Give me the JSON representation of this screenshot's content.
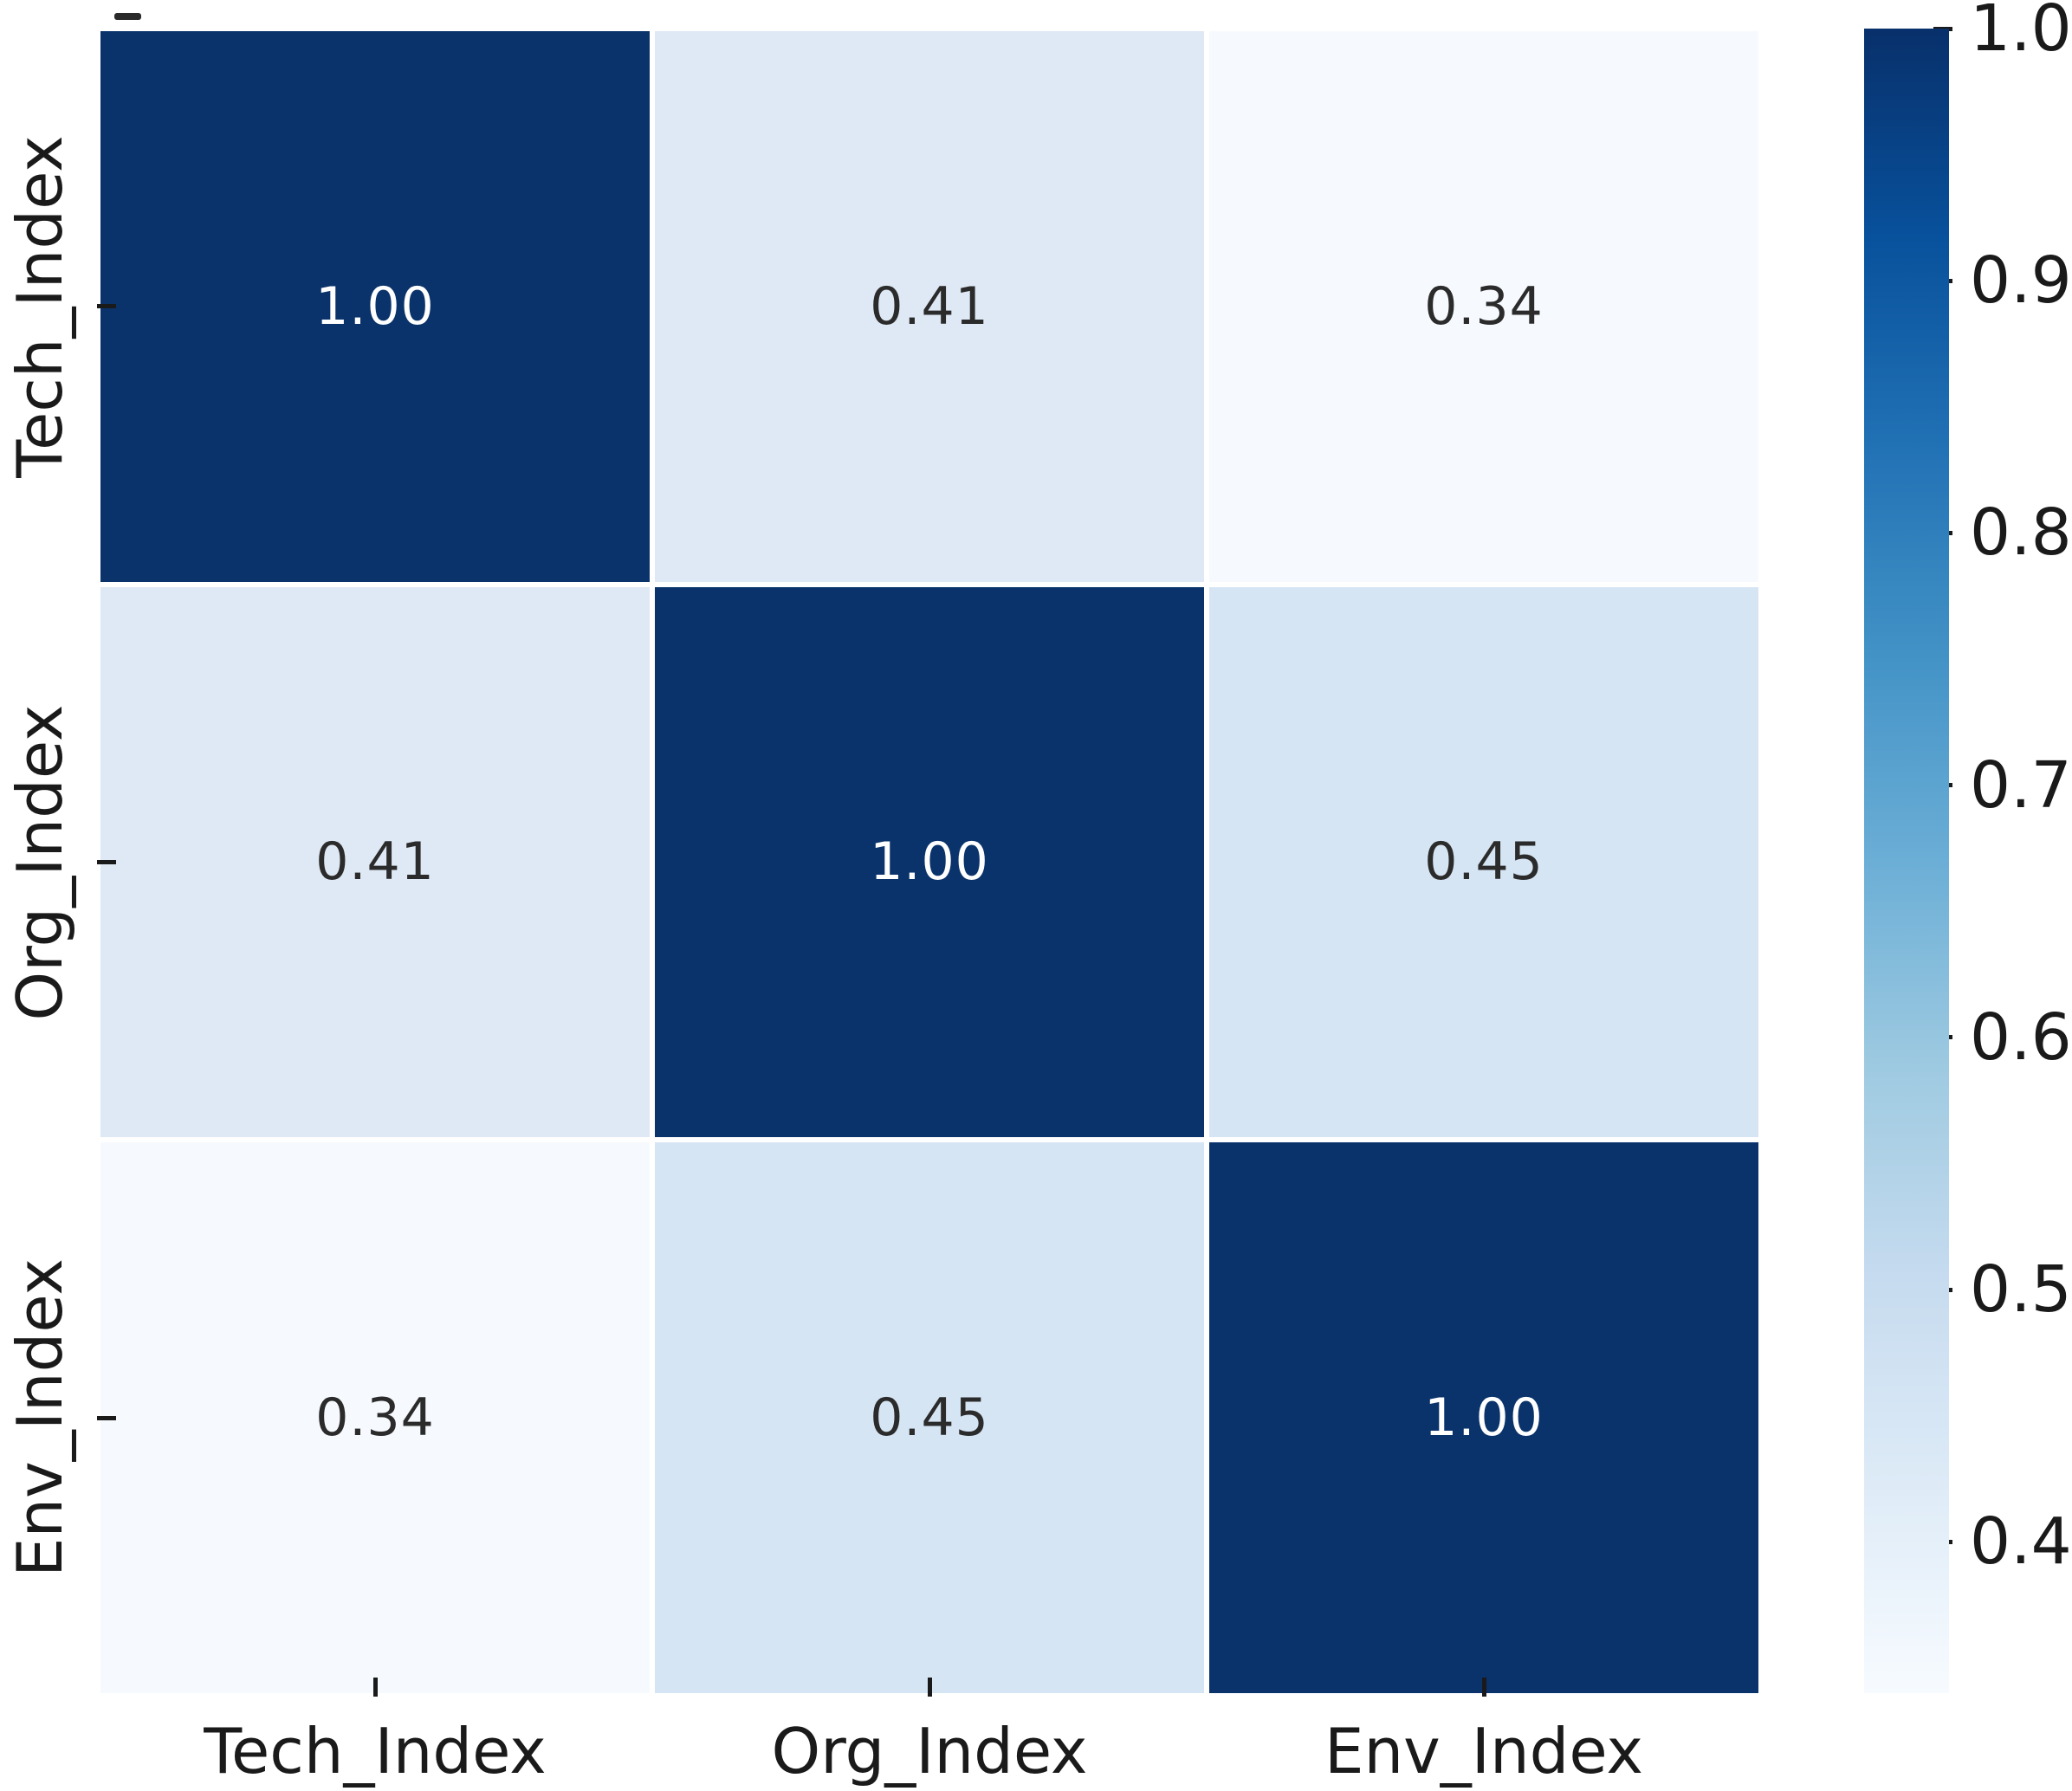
{
  "chart_data": {
    "type": "heatmap",
    "title": "",
    "x_labels": [
      "Tech_Index",
      "Org_Index",
      "Env_Index"
    ],
    "y_labels": [
      "Tech_Index",
      "Org_Index",
      "Env_Index"
    ],
    "categories": [
      "Tech_Index",
      "Org_Index",
      "Env_Index"
    ],
    "matrix": [
      [
        1.0,
        0.41,
        0.34
      ],
      [
        0.41,
        1.0,
        0.45
      ],
      [
        0.34,
        0.45,
        1.0
      ]
    ],
    "cell_labels": [
      [
        "1.00",
        "0.41",
        "0.34"
      ],
      [
        "0.41",
        "1.00",
        "0.45"
      ],
      [
        "0.34",
        "0.45",
        "1.00"
      ]
    ],
    "colormap": "Blues",
    "vmin": 0.34,
    "vmax": 1.0,
    "grid": false,
    "legend_position": "right-colorbar",
    "colorbar": {
      "tick_values": [
        1.0,
        0.9,
        0.8,
        0.7,
        0.6,
        0.5,
        0.4
      ],
      "tick_labels": [
        "1.0",
        "0.9",
        "0.8",
        "0.7",
        "0.6",
        "0.5",
        "0.4"
      ],
      "gradient_top_to_bottom": [
        "#08306b",
        "#08519c",
        "#2171b5",
        "#4292c6",
        "#6baed6",
        "#9ecae1",
        "#c6dbef",
        "#deebf7",
        "#f7fbff"
      ]
    },
    "value_styles": {
      "1.00": {
        "bg": "#0a336b",
        "fg": "#ffffff"
      },
      "0.41": {
        "bg": "#dfe9f5",
        "fg": "#2b2b2b"
      },
      "0.45": {
        "bg": "#d6e5f4",
        "fg": "#2b2b2b"
      },
      "0.34": {
        "bg": "#f6fafe",
        "fg": "#2b2b2b"
      }
    }
  },
  "colors": {
    "background": "#ffffff",
    "axis_text": "#1a1a1a",
    "tick": "#1a1a1a",
    "cell_gap": "#ffffff"
  }
}
